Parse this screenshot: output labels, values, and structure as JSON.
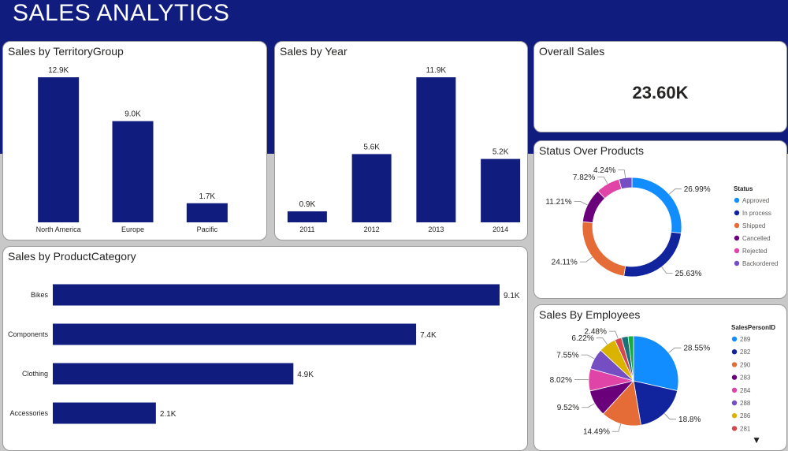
{
  "app": {
    "title": "SALES ANALYTICS"
  },
  "colors": {
    "bar": "#111c7f",
    "header": "#111c7f"
  },
  "territory": {
    "title": "Sales by TerritoryGroup",
    "chart_data": {
      "type": "bar",
      "categories": [
        "North America",
        "Europe",
        "Pacific"
      ],
      "values": [
        12.9,
        9.0,
        1.7
      ],
      "labels": [
        "12.9K",
        "9.0K",
        "1.7K"
      ]
    }
  },
  "year": {
    "title": "Sales by Year",
    "chart_data": {
      "type": "bar",
      "categories": [
        "2011",
        "2012",
        "2013",
        "2014"
      ],
      "values": [
        0.9,
        5.6,
        11.9,
        5.2
      ],
      "labels": [
        "0.9K",
        "5.6K",
        "11.9K",
        "5.2K"
      ]
    }
  },
  "overall": {
    "title": "Overall Sales",
    "value": "23.60K"
  },
  "category": {
    "title": "Sales by ProductCategory",
    "chart_data": {
      "type": "bar",
      "orientation": "horizontal",
      "categories": [
        "Bikes",
        "Components",
        "Clothing",
        "Accessories"
      ],
      "values": [
        9.1,
        7.4,
        4.9,
        2.1
      ],
      "labels": [
        "9.1K",
        "7.4K",
        "4.9K",
        "2.1K"
      ]
    }
  },
  "status": {
    "title": "Status Over Products",
    "chart_data": {
      "type": "pie",
      "variant": "donut",
      "legend_title": "Status",
      "slices": [
        {
          "name": "Approved",
          "value": 26.99,
          "label": "26.99%",
          "color": "#118dff"
        },
        {
          "name": "In process",
          "value": 25.63,
          "label": "25.63%",
          "color": "#12239e"
        },
        {
          "name": "Shipped",
          "value": 24.11,
          "label": "24.11%",
          "color": "#e66c37"
        },
        {
          "name": "Cancelled",
          "value": 11.21,
          "label": "11.21%",
          "color": "#6b007b"
        },
        {
          "name": "Rejected",
          "value": 7.82,
          "label": "7.82%",
          "color": "#e044a7"
        },
        {
          "name": "Backordered",
          "value": 4.24,
          "label": "4.24%",
          "color": "#744ec2"
        }
      ]
    }
  },
  "employees": {
    "title": "Sales By Employees",
    "chart_data": {
      "type": "pie",
      "legend_title": "SalesPersonID",
      "slices": [
        {
          "name": "289",
          "value": 28.55,
          "label": "28.55%",
          "color": "#118dff"
        },
        {
          "name": "282",
          "value": 18.8,
          "label": "18.8%",
          "color": "#12239e"
        },
        {
          "name": "290",
          "value": 14.49,
          "label": "14.49%",
          "color": "#e66c37"
        },
        {
          "name": "283",
          "value": 9.52,
          "label": "9.52%",
          "color": "#6b007b"
        },
        {
          "name": "284",
          "value": 8.02,
          "label": "8.02%",
          "color": "#e044a7"
        },
        {
          "name": "288",
          "value": 7.55,
          "label": "7.55%",
          "color": "#744ec2"
        },
        {
          "name": "286",
          "value": 6.22,
          "label": "6.22%",
          "color": "#d9b300"
        },
        {
          "name": "281",
          "value": 2.48,
          "label": "2.48%",
          "color": "#d64550"
        },
        {
          "name": "",
          "value": 2.4,
          "label": "",
          "color": "#197278"
        },
        {
          "name": "",
          "value": 1.97,
          "label": "",
          "color": "#1aab40"
        }
      ]
    },
    "scroll_icon": "caret-down-icon"
  }
}
